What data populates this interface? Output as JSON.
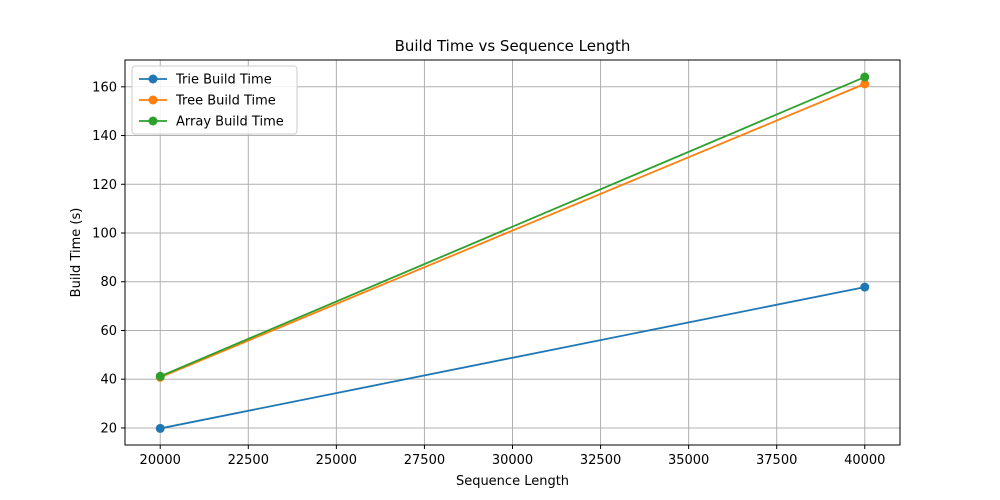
{
  "chart_data": {
    "type": "line",
    "title": "Build Time vs Sequence Length",
    "xlabel": "Sequence Length",
    "ylabel": "Build Time (s)",
    "x": [
      20000,
      40000
    ],
    "xlim": [
      19000,
      41000
    ],
    "ylim": [
      13,
      171
    ],
    "xticks": [
      20000,
      22500,
      25000,
      27500,
      30000,
      32500,
      35000,
      37500,
      40000
    ],
    "yticks": [
      20,
      40,
      60,
      80,
      100,
      120,
      140,
      160
    ],
    "grid": true,
    "legend_position": "top-left",
    "series": [
      {
        "name": "Trie Build Time",
        "values": [
          19.8,
          77.8
        ],
        "color": "#1f77b4"
      },
      {
        "name": "Tree Build Time",
        "values": [
          40.8,
          161.2
        ],
        "color": "#ff7f0e"
      },
      {
        "name": "Array Build Time",
        "values": [
          41.2,
          164.0
        ],
        "color": "#2ca02c"
      }
    ]
  }
}
